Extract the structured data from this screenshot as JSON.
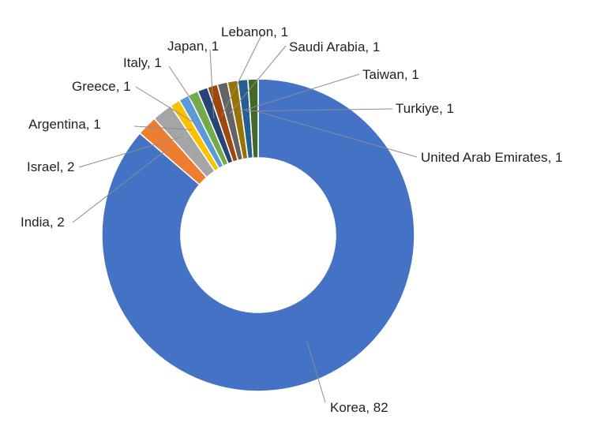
{
  "chart_data": {
    "type": "pie",
    "donut": true,
    "title": "",
    "legend": "none",
    "slices": [
      {
        "label": "Korea",
        "value": 82,
        "color": "#4472c4",
        "text": "Korea, 82"
      },
      {
        "label": "India",
        "value": 2,
        "color": "#ed7d31",
        "text": "India, 2"
      },
      {
        "label": "Israel",
        "value": 2,
        "color": "#a5a5a5",
        "text": "Israel, 2"
      },
      {
        "label": "Argentina",
        "value": 1,
        "color": "#ffc000",
        "text": "Argentina, 1"
      },
      {
        "label": "Greece",
        "value": 1,
        "color": "#5b9bd5",
        "text": "Greece, 1"
      },
      {
        "label": "Italy",
        "value": 1,
        "color": "#70ad47",
        "text": "Italy, 1"
      },
      {
        "label": "Japan",
        "value": 1,
        "color": "#264478",
        "text": "Japan, 1"
      },
      {
        "label": "Lebanon",
        "value": 1,
        "color": "#9e480e",
        "text": "Lebanon, 1"
      },
      {
        "label": "Saudi Arabia",
        "value": 1,
        "color": "#636363",
        "text": "Saudi Arabia, 1"
      },
      {
        "label": "Taiwan",
        "value": 1,
        "color": "#997300",
        "text": "Taiwan, 1"
      },
      {
        "label": "Turkiye",
        "value": 1,
        "color": "#255e91",
        "text": "Turkiye, 1"
      },
      {
        "label": "United Arab Emirates",
        "value": 1,
        "color": "#43682b",
        "text": "United Arab Emirates, 1"
      }
    ]
  }
}
